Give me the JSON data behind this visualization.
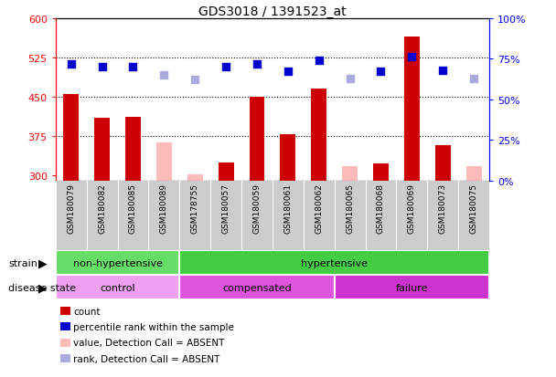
{
  "title": "GDS3018 / 1391523_at",
  "samples": [
    "GSM180079",
    "GSM180082",
    "GSM180085",
    "GSM180089",
    "GSM178755",
    "GSM180057",
    "GSM180059",
    "GSM180061",
    "GSM180062",
    "GSM180065",
    "GSM180068",
    "GSM180069",
    "GSM180073",
    "GSM180075"
  ],
  "count_values": [
    455,
    410,
    412,
    null,
    null,
    325,
    450,
    378,
    465,
    null,
    322,
    565,
    358,
    null
  ],
  "count_absent": [
    null,
    null,
    null,
    362,
    302,
    null,
    null,
    null,
    null,
    318,
    null,
    null,
    null,
    318
  ],
  "percentile_values": [
    72,
    70,
    70,
    null,
    null,
    70,
    72,
    67,
    74,
    null,
    67,
    76,
    68,
    null
  ],
  "percentile_absent": [
    null,
    null,
    null,
    65,
    62,
    null,
    null,
    null,
    null,
    63,
    null,
    null,
    null,
    63
  ],
  "ylim_left": [
    290,
    600
  ],
  "ylim_right": [
    0,
    100
  ],
  "yticks_left": [
    300,
    375,
    450,
    525,
    600
  ],
  "yticks_right": [
    0,
    25,
    50,
    75,
    100
  ],
  "strain_groups": [
    {
      "label": "non-hypertensive",
      "start": 0,
      "end": 4,
      "color": "#66dd66"
    },
    {
      "label": "hypertensive",
      "start": 4,
      "end": 14,
      "color": "#44cc44"
    }
  ],
  "disease_groups": [
    {
      "label": "control",
      "start": 0,
      "end": 4,
      "color": "#f0a0f0"
    },
    {
      "label": "compensated",
      "start": 4,
      "end": 9,
      "color": "#dd55dd"
    },
    {
      "label": "failure",
      "start": 9,
      "end": 14,
      "color": "#cc33cc"
    }
  ],
  "bar_color_present": "#cc0000",
  "bar_color_absent": "#ffbbbb",
  "dot_color_present": "#0000cc",
  "dot_color_absent": "#aaaadd",
  "bar_width": 0.5,
  "dot_size": 30,
  "background_color": "#ffffff",
  "plot_bg_color": "#ffffff",
  "xlabel_bg": "#cccccc",
  "legend_items": [
    {
      "label": "count",
      "color": "#cc0000"
    },
    {
      "label": "percentile rank within the sample",
      "color": "#0000cc"
    },
    {
      "label": "value, Detection Call = ABSENT",
      "color": "#ffbbbb"
    },
    {
      "label": "rank, Detection Call = ABSENT",
      "color": "#aaaadd"
    }
  ]
}
